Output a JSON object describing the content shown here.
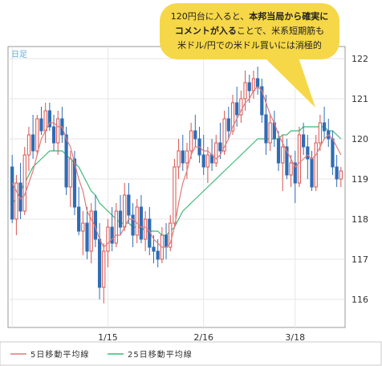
{
  "period_label": "日足",
  "callout": {
    "line1_normal": "120円台に入ると、",
    "line1_bold": "本邦当局から確実に",
    "line2_bold": "コメントが入る",
    "line2_normal": "ことで、米系短期筋も",
    "line3": "米ドル/円での米ドル買いには消極的",
    "bg_color": "#f6d748"
  },
  "legend": {
    "ma5": "5日移動平均線",
    "ma25": "25日移動平均線"
  },
  "colors": {
    "up": "#d9534f",
    "down": "#2f6db5",
    "ma5": "#e07a7a",
    "ma25": "#3cb878",
    "grid": "#e6e6e6",
    "frame": "#9a9a9a"
  },
  "chart_data": {
    "type": "candlestick",
    "ylim": [
      115.3,
      122.3
    ],
    "yticks": [
      116,
      117,
      118,
      119,
      120,
      121,
      122
    ],
    "x_tick_labels": [
      {
        "label": "1/15",
        "index": 23
      },
      {
        "label": "2/16",
        "index": 46
      },
      {
        "label": "3/18",
        "index": 68
      }
    ],
    "x_gridline_indices": [
      0,
      23,
      46,
      68
    ],
    "candles": [
      [
        119.3,
        119.6,
        117.9,
        118.0
      ],
      [
        118.0,
        119.1,
        117.6,
        118.9
      ],
      [
        118.9,
        119.4,
        118.0,
        118.2
      ],
      [
        118.2,
        119.8,
        118.1,
        119.6
      ],
      [
        119.6,
        120.3,
        119.2,
        120.1
      ],
      [
        120.1,
        120.6,
        119.5,
        119.7
      ],
      [
        119.7,
        120.6,
        119.6,
        120.5
      ],
      [
        120.5,
        120.8,
        120.1,
        120.2
      ],
      [
        120.2,
        120.9,
        119.9,
        120.7
      ],
      [
        120.7,
        120.9,
        120.2,
        120.3
      ],
      [
        120.3,
        120.6,
        119.7,
        119.9
      ],
      [
        119.9,
        120.7,
        119.6,
        120.5
      ],
      [
        120.5,
        120.8,
        119.9,
        120.1
      ],
      [
        120.1,
        120.3,
        118.6,
        118.8
      ],
      [
        118.8,
        119.7,
        118.3,
        119.5
      ],
      [
        119.5,
        119.7,
        118.1,
        118.3
      ],
      [
        118.3,
        118.8,
        117.6,
        117.7
      ],
      [
        117.7,
        118.2,
        117.1,
        117.9
      ],
      [
        117.9,
        118.3,
        117.0,
        117.2
      ],
      [
        117.2,
        118.4,
        116.9,
        118.2
      ],
      [
        118.2,
        118.6,
        117.3,
        117.5
      ],
      [
        117.5,
        117.9,
        116.0,
        116.3
      ],
      [
        116.3,
        117.4,
        115.9,
        117.2
      ],
      [
        117.2,
        118.0,
        116.8,
        117.8
      ],
      [
        117.8,
        118.3,
        117.2,
        117.4
      ],
      [
        117.4,
        118.4,
        117.3,
        118.2
      ],
      [
        118.2,
        118.6,
        117.6,
        117.8
      ],
      [
        117.8,
        118.9,
        117.7,
        118.6
      ],
      [
        118.6,
        118.9,
        117.9,
        118.1
      ],
      [
        118.1,
        118.4,
        117.3,
        117.6
      ],
      [
        117.6,
        118.5,
        117.4,
        118.3
      ],
      [
        118.3,
        118.6,
        117.4,
        117.5
      ],
      [
        117.5,
        118.2,
        117.2,
        118.0
      ],
      [
        118.0,
        118.3,
        117.1,
        117.3
      ],
      [
        117.3,
        117.6,
        116.9,
        117.2
      ],
      [
        117.2,
        117.5,
        116.8,
        117.0
      ],
      [
        117.0,
        117.8,
        116.9,
        117.6
      ],
      [
        117.6,
        117.9,
        117.0,
        117.3
      ],
      [
        117.3,
        118.1,
        117.2,
        117.9
      ],
      [
        117.9,
        119.5,
        117.8,
        119.3
      ],
      [
        119.3,
        120.0,
        119.0,
        119.7
      ],
      [
        119.7,
        120.1,
        119.2,
        119.4
      ],
      [
        119.4,
        119.9,
        119.0,
        119.7
      ],
      [
        119.7,
        120.4,
        119.5,
        120.2
      ],
      [
        120.2,
        120.6,
        119.8,
        120.0
      ],
      [
        120.0,
        120.3,
        119.4,
        119.6
      ],
      [
        119.6,
        120.1,
        119.1,
        119.3
      ],
      [
        119.3,
        119.8,
        118.9,
        119.6
      ],
      [
        119.6,
        120.0,
        119.2,
        119.4
      ],
      [
        119.4,
        120.1,
        119.3,
        119.9
      ],
      [
        119.9,
        120.4,
        119.5,
        119.7
      ],
      [
        119.7,
        120.7,
        119.6,
        120.5
      ],
      [
        120.5,
        120.8,
        120.0,
        120.2
      ],
      [
        120.2,
        121.1,
        120.1,
        120.9
      ],
      [
        120.9,
        121.3,
        120.3,
        120.6
      ],
      [
        120.6,
        121.2,
        120.4,
        121.0
      ],
      [
        121.0,
        121.7,
        120.7,
        121.4
      ],
      [
        121.4,
        121.6,
        120.9,
        121.2
      ],
      [
        121.2,
        121.7,
        121.0,
        121.5
      ],
      [
        121.5,
        121.8,
        121.1,
        121.3
      ],
      [
        121.3,
        121.5,
        120.4,
        120.6
      ],
      [
        120.6,
        121.1,
        119.6,
        119.9
      ],
      [
        119.9,
        120.6,
        119.7,
        120.4
      ],
      [
        120.4,
        120.7,
        119.8,
        120.0
      ],
      [
        120.0,
        120.2,
        119.2,
        119.4
      ],
      [
        119.4,
        120.1,
        118.7,
        119.8
      ],
      [
        119.8,
        120.0,
        119.0,
        119.1
      ],
      [
        119.1,
        119.6,
        118.8,
        119.4
      ],
      [
        119.4,
        119.7,
        118.4,
        118.9
      ],
      [
        118.9,
        120.3,
        118.8,
        120.1
      ],
      [
        120.1,
        120.4,
        119.6,
        119.8
      ],
      [
        119.8,
        120.1,
        119.0,
        119.5
      ],
      [
        119.5,
        119.7,
        118.7,
        118.8
      ],
      [
        118.8,
        120.1,
        118.7,
        119.9
      ],
      [
        119.9,
        120.6,
        119.7,
        120.4
      ],
      [
        120.4,
        120.8,
        120.0,
        120.2
      ],
      [
        120.2,
        120.5,
        119.8,
        120.0
      ],
      [
        120.0,
        120.2,
        119.1,
        119.3
      ],
      [
        119.3,
        119.6,
        118.8,
        119.0
      ],
      [
        119.0,
        119.3,
        118.8,
        119.2
      ]
    ],
    "ma5": [
      118.9,
      118.7,
      118.5,
      118.6,
      118.9,
      119.2,
      119.6,
      120.0,
      120.2,
      120.4,
      120.4,
      120.3,
      120.3,
      120.0,
      119.8,
      119.4,
      119.0,
      118.7,
      118.2,
      118.0,
      117.8,
      117.5,
      117.3,
      117.4,
      117.5,
      117.6,
      117.6,
      117.8,
      118.0,
      118.0,
      117.9,
      117.8,
      117.8,
      117.7,
      117.5,
      117.4,
      117.3,
      117.3,
      117.4,
      117.8,
      118.4,
      118.9,
      119.2,
      119.6,
      119.8,
      119.8,
      119.7,
      119.7,
      119.6,
      119.5,
      119.6,
      119.8,
      120.0,
      120.3,
      120.5,
      120.7,
      120.9,
      121.0,
      121.2,
      121.3,
      121.2,
      120.9,
      120.6,
      120.4,
      120.1,
      119.9,
      119.7,
      119.5,
      119.3,
      119.4,
      119.5,
      119.6,
      119.5,
      119.6,
      119.8,
      120.0,
      120.1,
      120.0,
      119.8,
      119.6
    ],
    "ma25": [
      118.4,
      118.5,
      118.7,
      118.9,
      119.1,
      119.3,
      119.4,
      119.5,
      119.6,
      119.7,
      119.7,
      119.7,
      119.7,
      119.6,
      119.5,
      119.4,
      119.3,
      119.1,
      118.9,
      118.7,
      118.6,
      118.4,
      118.3,
      118.2,
      118.1,
      118.0,
      117.9,
      117.9,
      117.9,
      117.8,
      117.8,
      117.8,
      117.7,
      117.7,
      117.7,
      117.7,
      117.6,
      117.6,
      117.7,
      117.8,
      118.0,
      118.2,
      118.3,
      118.4,
      118.5,
      118.6,
      118.7,
      118.8,
      118.9,
      119.0,
      119.1,
      119.2,
      119.3,
      119.4,
      119.5,
      119.6,
      119.7,
      119.8,
      119.9,
      120.0,
      120.0,
      120.0,
      120.0,
      120.0,
      120.0,
      120.1,
      120.1,
      120.2,
      120.2,
      120.2,
      120.3,
      120.3,
      120.3,
      120.3,
      120.3,
      120.3,
      120.2,
      120.2,
      120.1,
      120.0
    ]
  }
}
